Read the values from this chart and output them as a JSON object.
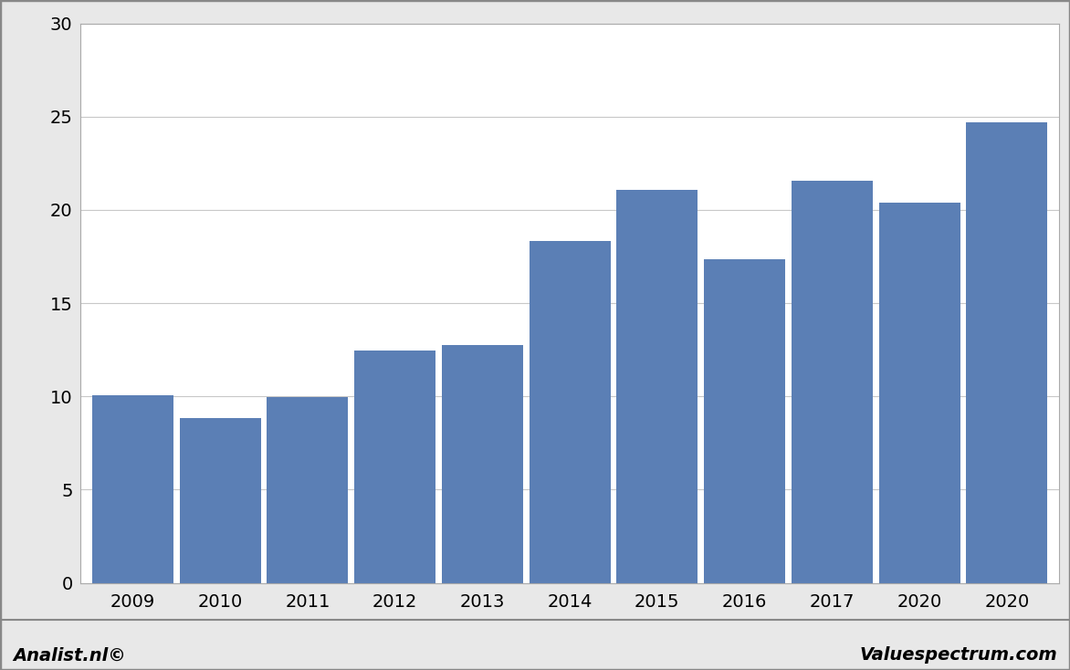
{
  "categories": [
    "2009",
    "2010",
    "2011",
    "2012",
    "2013",
    "2014",
    "2015",
    "2016",
    "2017",
    "2020",
    "2020"
  ],
  "values": [
    10.05,
    8.85,
    9.95,
    12.45,
    12.75,
    18.35,
    21.1,
    17.35,
    21.55,
    20.4,
    24.7
  ],
  "bar_color": "#5b7fb5",
  "background_color": "#e8e8e8",
  "plot_background": "#ffffff",
  "ylim": [
    0,
    30
  ],
  "yticks": [
    0,
    5,
    10,
    15,
    20,
    25,
    30
  ],
  "grid_color": "#c8c8c8",
  "footer_left": "Analist.nl©",
  "footer_right": "Valuespectrum.com",
  "footer_fontsize": 14,
  "tick_fontsize": 14,
  "border_color": "#aaaaaa",
  "bar_width": 0.93
}
